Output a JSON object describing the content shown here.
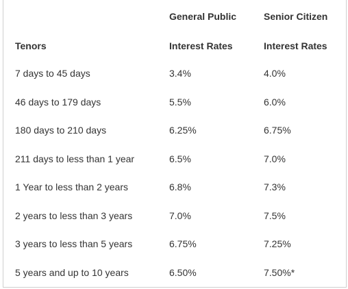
{
  "table": {
    "header": {
      "tenor": "Tenors",
      "general_line1": "General Public",
      "general_line2": "Interest Rates",
      "senior_line1": "Senior Citizen",
      "senior_line2": "Interest Rates"
    },
    "rows": [
      {
        "tenor": "7 days to 45 days",
        "general": "3.4%",
        "senior": "4.0%"
      },
      {
        "tenor": "46 days to 179 days",
        "general": "5.5%",
        "senior": "6.0%"
      },
      {
        "tenor": "180 days to 210 days",
        "general": "6.25%",
        "senior": "6.75%"
      },
      {
        "tenor": "211 days to less than 1 year",
        "general": "6.5%",
        "senior": "7.0%"
      },
      {
        "tenor": "1 Year to less than 2 years",
        "general": "6.8%",
        "senior": "7.3%"
      },
      {
        "tenor": "2 years to less than 3 years",
        "general": "7.0%",
        "senior": "7.5%"
      },
      {
        "tenor": "3 years to less than 5 years",
        "general": "6.75%",
        "senior": "7.25%"
      },
      {
        "tenor": "5 years and up to 10 years",
        "general": "6.50%",
        "senior": "7.50%*"
      }
    ]
  }
}
